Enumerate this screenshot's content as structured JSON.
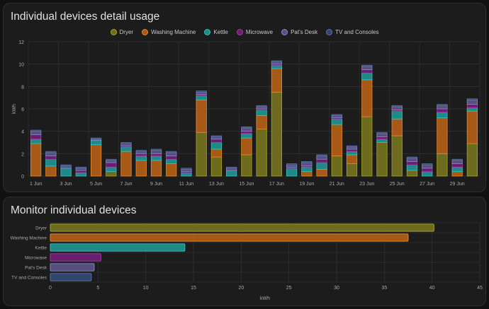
{
  "colors": {
    "Dryer": {
      "fill": "#6d6c1e",
      "stroke": "#a9a62b"
    },
    "Washing Machine": {
      "fill": "#a75a17",
      "stroke": "#e98a2e"
    },
    "Kettle": {
      "fill": "#1f8a86",
      "stroke": "#39c3bd"
    },
    "Microwave": {
      "fill": "#6a1f6e",
      "stroke": "#a83aae"
    },
    "Pat's Desk": {
      "fill": "#56507e",
      "stroke": "#8f86c6"
    },
    "TV and Consoles": {
      "fill": "#34456c",
      "stroke": "#5b73ad"
    }
  },
  "chart_data": [
    {
      "type": "bar",
      "stacked": true,
      "title": "Individual devices detail usage",
      "ylabel": "kWh",
      "ylim": [
        0,
        12
      ],
      "yticks": [
        "0",
        "2",
        "4",
        "6",
        "8",
        "10",
        "12"
      ],
      "categories": [
        "1 Jun",
        "2 Jun",
        "3 Jun",
        "4 Jun",
        "5 Jun",
        "6 Jun",
        "7 Jun",
        "8 Jun",
        "9 Jun",
        "10 Jun",
        "11 Jun",
        "12 Jun",
        "13 Jun",
        "14 Jun",
        "15 Jun",
        "16 Jun",
        "17 Jun",
        "18 Jun",
        "19 Jun",
        "20 Jun",
        "21 Jun",
        "22 Jun",
        "23 Jun",
        "24 Jun",
        "25 Jun",
        "26 Jun",
        "27 Jun",
        "28 Jun",
        "29 Jun",
        "30 Jun"
      ],
      "xtick_labels": [
        "1 Jun",
        "",
        "3 Jun",
        "",
        "5 Jun",
        "",
        "7 Jun",
        "",
        "9 Jun",
        "",
        "11 Jun",
        "",
        "13 Jun",
        "",
        "15 Jun",
        "",
        "17 Jun",
        "",
        "19 Jun",
        "",
        "21 Jun",
        "",
        "23 Jun",
        "",
        "25 Jun",
        "",
        "27 Jun",
        "",
        "29 Jun",
        ""
      ],
      "legend": [
        "Dryer",
        "Washing Machine",
        "Kettle",
        "Microwave",
        "Pat's Desk",
        "TV and Consoles"
      ],
      "series": [
        {
          "name": "Dryer",
          "values": [
            0,
            0,
            0,
            0,
            0,
            0.4,
            0,
            0,
            0,
            0,
            0,
            3.9,
            1.7,
            0,
            1.9,
            4.2,
            7.5,
            0,
            0,
            0,
            1.8,
            1.1,
            5.3,
            3.0,
            3.6,
            0.5,
            0,
            2.0,
            0,
            2.9
          ]
        },
        {
          "name": "Washing Machine",
          "values": [
            2.9,
            0.9,
            0,
            0,
            2.8,
            0,
            2.2,
            1.4,
            1.4,
            1.1,
            0,
            2.9,
            0.7,
            0,
            1.5,
            1.2,
            2.1,
            0,
            0.4,
            0.6,
            2.8,
            0.8,
            3.3,
            0,
            1.5,
            0,
            0,
            3.2,
            0.4,
            2.9
          ]
        },
        {
          "name": "Kettle",
          "values": [
            0.4,
            0.6,
            0.7,
            0.3,
            0.4,
            0.4,
            0.4,
            0.4,
            0.4,
            0.4,
            0.3,
            0.4,
            0.6,
            0.5,
            0.4,
            0.5,
            0.3,
            0.7,
            0.4,
            0.6,
            0.5,
            0.3,
            0.6,
            0.3,
            0.7,
            0.5,
            0.4,
            0.5,
            0.4,
            0.3
          ]
        },
        {
          "name": "Microwave",
          "values": [
            0.4,
            0.3,
            0,
            0.2,
            0,
            0.4,
            0.1,
            0.2,
            0.2,
            0.3,
            0.1,
            0.1,
            0.3,
            0,
            0.2,
            0.1,
            0.1,
            0.1,
            0.1,
            0.3,
            0.1,
            0.2,
            0.3,
            0.2,
            0.1,
            0.3,
            0.3,
            0.3,
            0.3,
            0.3
          ]
        },
        {
          "name": "Pat's Desk",
          "values": [
            0.3,
            0.3,
            0.2,
            0.2,
            0.1,
            0.2,
            0.2,
            0.2,
            0.3,
            0.3,
            0.2,
            0.2,
            0.2,
            0.2,
            0.3,
            0.2,
            0.2,
            0.2,
            0.3,
            0.3,
            0.2,
            0.2,
            0.3,
            0.3,
            0.3,
            0.3,
            0.3,
            0.3,
            0.3,
            0.4
          ]
        },
        {
          "name": "TV and Consoles",
          "values": [
            0.1,
            0.1,
            0.1,
            0.1,
            0.1,
            0.1,
            0.1,
            0.1,
            0.1,
            0.1,
            0.1,
            0.1,
            0.1,
            0.1,
            0.1,
            0.1,
            0.1,
            0.1,
            0.1,
            0.1,
            0.1,
            0.1,
            0.1,
            0.1,
            0.1,
            0.1,
            0.1,
            0.1,
            0.1,
            0.1
          ]
        }
      ]
    },
    {
      "type": "bar",
      "orientation": "horizontal",
      "title": "Monitor individual devices",
      "xlabel": "kWh",
      "xlim": [
        0,
        45
      ],
      "xticks": [
        "0",
        "5",
        "10",
        "15",
        "20",
        "25",
        "30",
        "35",
        "40",
        "45"
      ],
      "categories": [
        "Dryer",
        "Washing Machine",
        "Kettle",
        "Microwave",
        "Pat's Desk",
        "TV and Consoles"
      ],
      "values": [
        40.2,
        37.5,
        14.1,
        5.3,
        4.6,
        4.3
      ]
    }
  ]
}
